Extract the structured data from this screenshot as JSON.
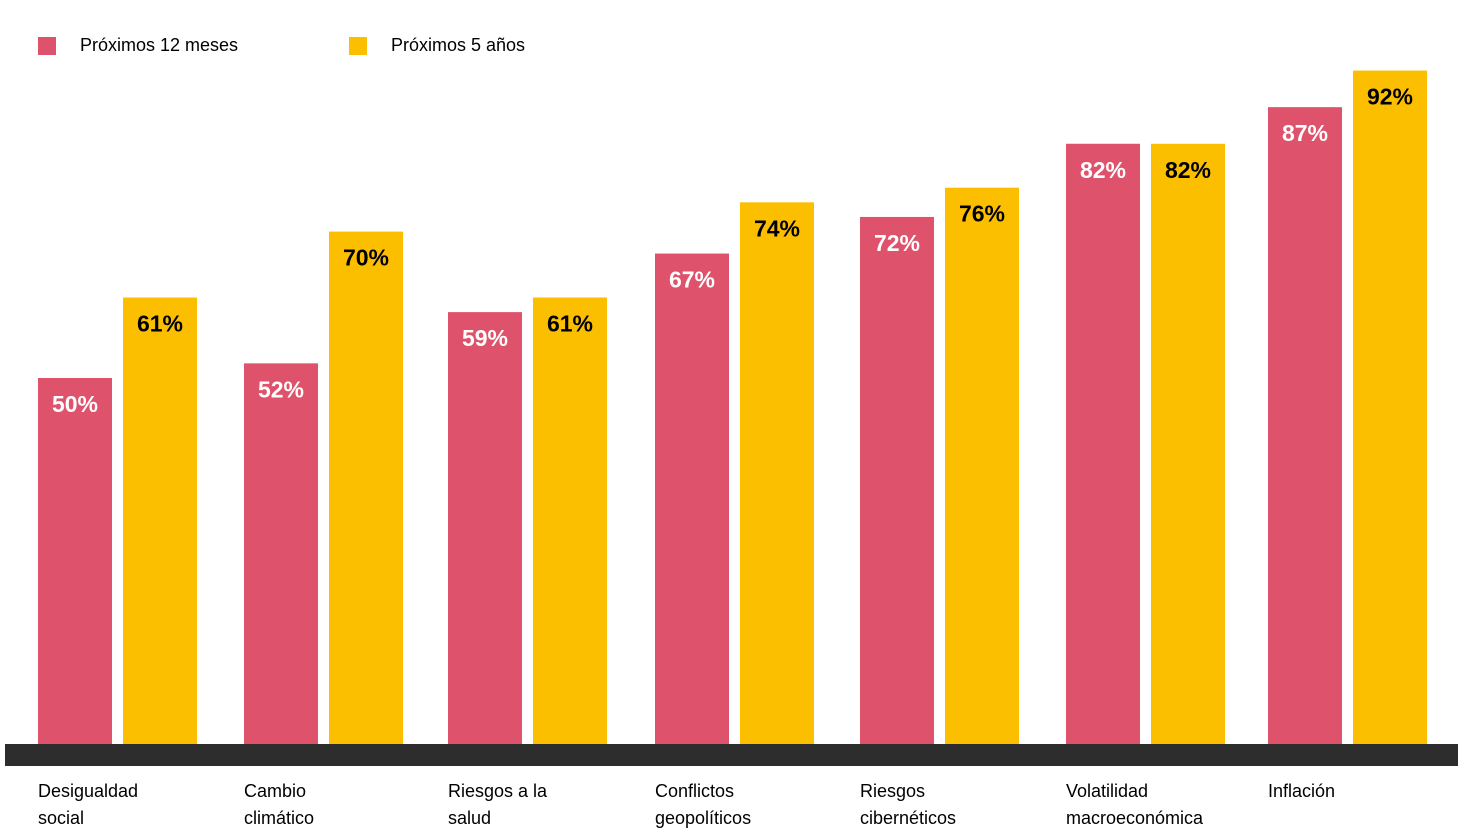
{
  "chart_data": {
    "type": "bar",
    "categories": [
      [
        "Desigualdad",
        "social"
      ],
      [
        "Cambio",
        "climático"
      ],
      [
        "Riesgos a la",
        "salud"
      ],
      [
        "Conflictos",
        "geopolíticos"
      ],
      [
        "Riesgos",
        "cibernéticos"
      ],
      [
        "Volatilidad",
        "macroeconómica"
      ],
      [
        "Inflación"
      ]
    ],
    "series": [
      {
        "name": "Próximos 12 meses",
        "color": "#de536b",
        "label_color": "#ffffff",
        "values": [
          50,
          52,
          59,
          67,
          72,
          82,
          87
        ]
      },
      {
        "name": "Próximos 5 años",
        "color": "#fbbf00",
        "label_color": "#000000",
        "values": [
          61,
          70,
          61,
          74,
          76,
          82,
          92
        ]
      }
    ],
    "value_suffix": "%",
    "ylim": [
      0,
      100
    ],
    "baseline_color": "#2d2d2d",
    "legend_position": "top-left",
    "grid": false
  }
}
